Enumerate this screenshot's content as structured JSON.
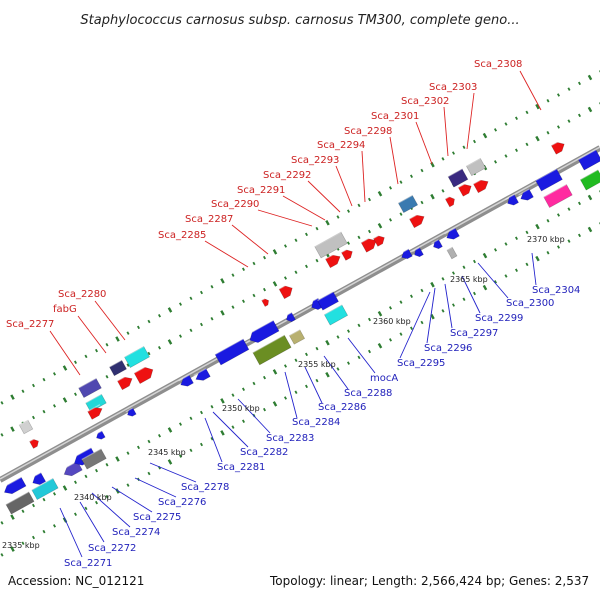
{
  "title": "Staphylococcus carnosus subsp. carnosus TM300, complete geno...",
  "accession": "Accession: NC_012121",
  "summary": "Topology: linear; Length: 2,566,424 bp; Genes: 2,537",
  "colors": {
    "forward": "#ee1111",
    "reverse": "#1111dd",
    "backbone": "#9a9a9a",
    "tick": "#338833",
    "forward_label": "#cc2222",
    "reverse_label": "#2222bb"
  },
  "kbp_labels": [
    "2335 kbp",
    "2340 kbp",
    "2345 kbp",
    "2350 kbp",
    "2355 kbp",
    "2360 kbp",
    "2365 kbp",
    "2370 kbp"
  ],
  "forward_labels": [
    "Sca_2277",
    "fabG",
    "Sca_2280",
    "Sca_2285",
    "Sca_2287",
    "Sca_2290",
    "Sca_2291",
    "Sca_2292",
    "Sca_2293",
    "Sca_2294",
    "Sca_2298",
    "Sca_2301",
    "Sca_2302",
    "Sca_2303",
    "Sca_2308"
  ],
  "reverse_labels": [
    "Sca_2271",
    "Sca_2272",
    "Sca_2274",
    "Sca_2275",
    "Sca_2276",
    "Sca_2278",
    "Sca_2281",
    "Sca_2282",
    "Sca_2283",
    "Sca_2284",
    "Sca_2286",
    "Sca_2288",
    "mocA",
    "Sca_2295",
    "Sca_2296",
    "Sca_2297",
    "Sca_2299",
    "Sca_2300",
    "Sca_2304"
  ]
}
